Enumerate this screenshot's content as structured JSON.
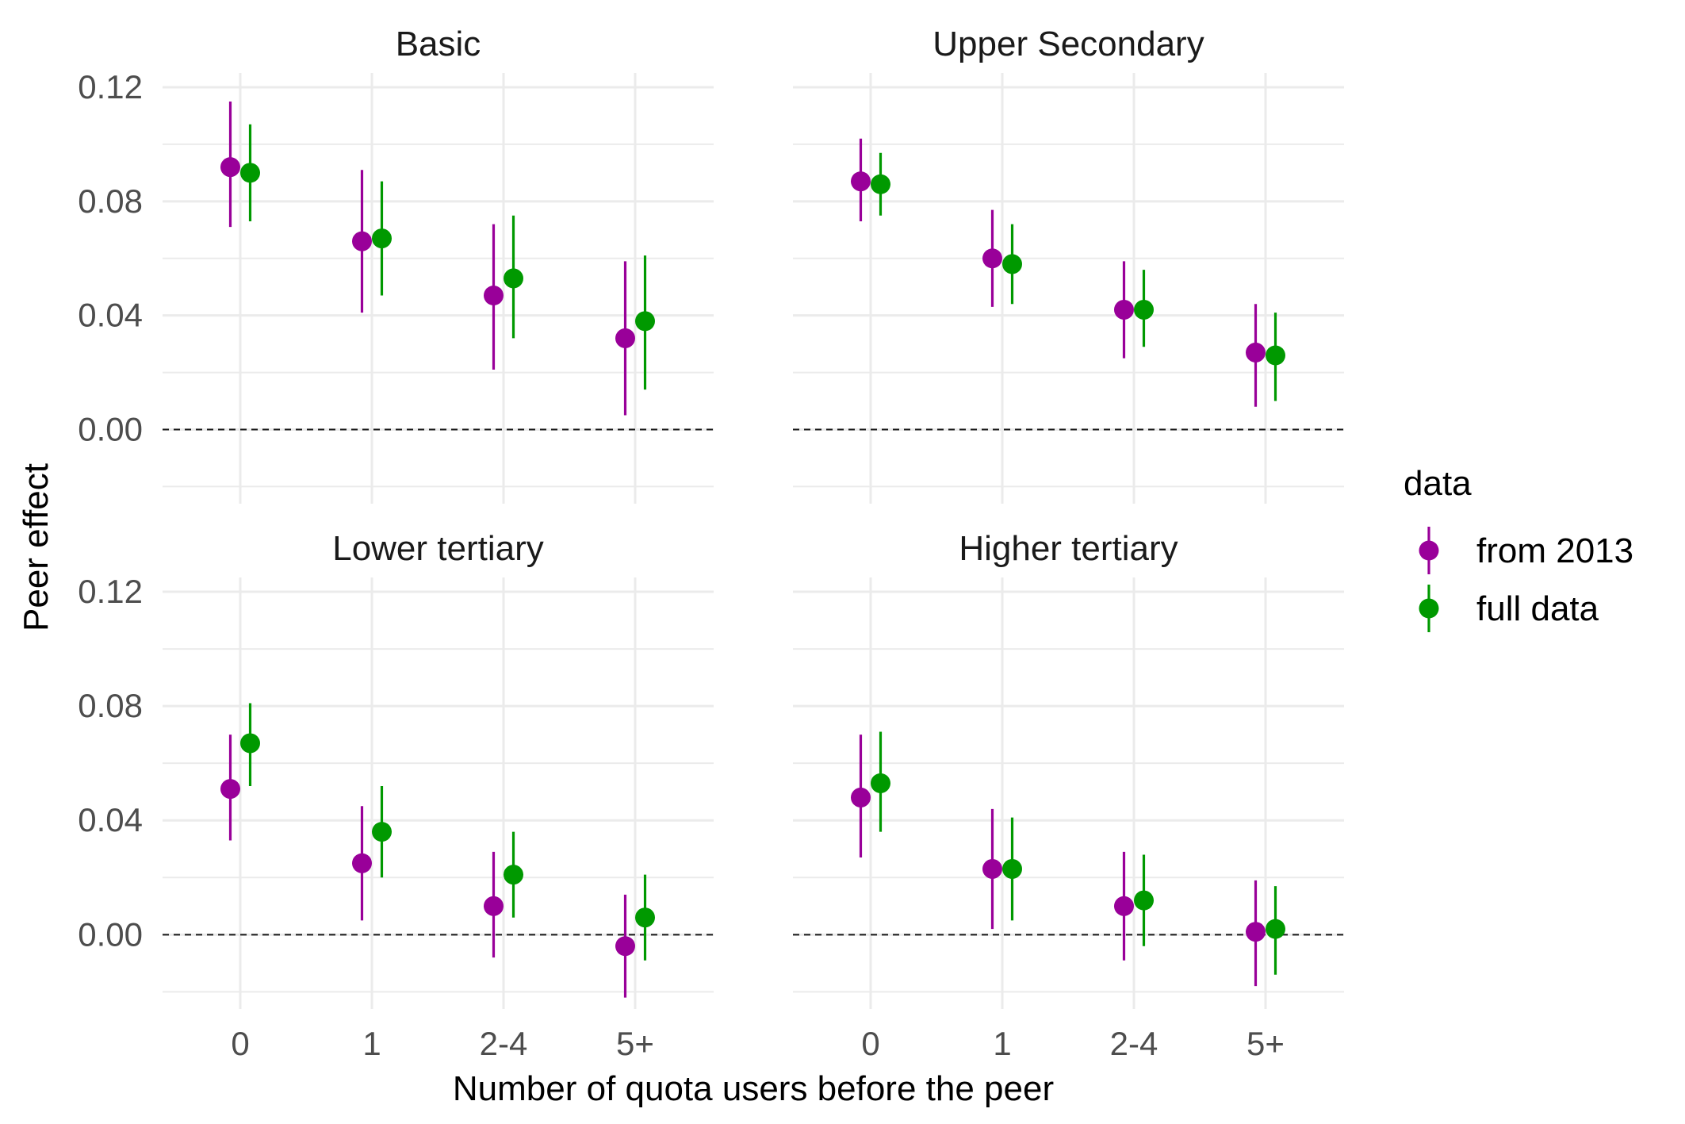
{
  "chart_data": {
    "type": "scatter",
    "subtype": "point-range, faceted 2x2",
    "xlabel": "Number of quota users before the peer",
    "ylabel": "Peer effect",
    "categories": [
      "0",
      "1",
      "2-4",
      "5+"
    ],
    "ylim": [
      -0.026,
      0.125
    ],
    "yticks": [
      0.0,
      0.04,
      0.08,
      0.12
    ],
    "ytick_labels": [
      "0.00",
      "0.04",
      "0.08",
      "0.12"
    ],
    "reference_line": 0.0,
    "grid": true,
    "legend": {
      "title": "data",
      "position": "right",
      "entries": [
        {
          "label": "from 2013",
          "color": "#990099"
        },
        {
          "label": "full data",
          "color": "#009900"
        }
      ]
    },
    "facets": [
      {
        "title": "Basic",
        "series": [
          {
            "name": "from 2013",
            "values": [
              0.092,
              0.066,
              0.047,
              0.032
            ],
            "lower": [
              0.071,
              0.041,
              0.021,
              0.005
            ],
            "upper": [
              0.115,
              0.091,
              0.072,
              0.059
            ]
          },
          {
            "name": "full data",
            "values": [
              0.09,
              0.067,
              0.053,
              0.038
            ],
            "lower": [
              0.073,
              0.047,
              0.032,
              0.014
            ],
            "upper": [
              0.107,
              0.087,
              0.075,
              0.061
            ]
          }
        ]
      },
      {
        "title": "Upper Secondary",
        "series": [
          {
            "name": "from 2013",
            "values": [
              0.087,
              0.06,
              0.042,
              0.027
            ],
            "lower": [
              0.073,
              0.043,
              0.025,
              0.008
            ],
            "upper": [
              0.102,
              0.077,
              0.059,
              0.044
            ]
          },
          {
            "name": "full data",
            "values": [
              0.086,
              0.058,
              0.042,
              0.026
            ],
            "lower": [
              0.075,
              0.044,
              0.029,
              0.01
            ],
            "upper": [
              0.097,
              0.072,
              0.056,
              0.041
            ]
          }
        ]
      },
      {
        "title": "Lower tertiary",
        "series": [
          {
            "name": "from 2013",
            "values": [
              0.051,
              0.025,
              0.01,
              -0.004
            ],
            "lower": [
              0.033,
              0.005,
              -0.008,
              -0.022
            ],
            "upper": [
              0.07,
              0.045,
              0.029,
              0.014
            ]
          },
          {
            "name": "full data",
            "values": [
              0.067,
              0.036,
              0.021,
              0.006
            ],
            "lower": [
              0.052,
              0.02,
              0.006,
              -0.009
            ],
            "upper": [
              0.081,
              0.052,
              0.036,
              0.021
            ]
          }
        ]
      },
      {
        "title": "Higher tertiary",
        "series": [
          {
            "name": "from 2013",
            "values": [
              0.048,
              0.023,
              0.01,
              0.001
            ],
            "lower": [
              0.027,
              0.002,
              -0.009,
              -0.018
            ],
            "upper": [
              0.07,
              0.044,
              0.029,
              0.019
            ]
          },
          {
            "name": "full data",
            "values": [
              0.053,
              0.023,
              0.012,
              0.002
            ],
            "lower": [
              0.036,
              0.005,
              -0.004,
              -0.014
            ],
            "upper": [
              0.071,
              0.041,
              0.028,
              0.017
            ]
          }
        ]
      }
    ]
  }
}
